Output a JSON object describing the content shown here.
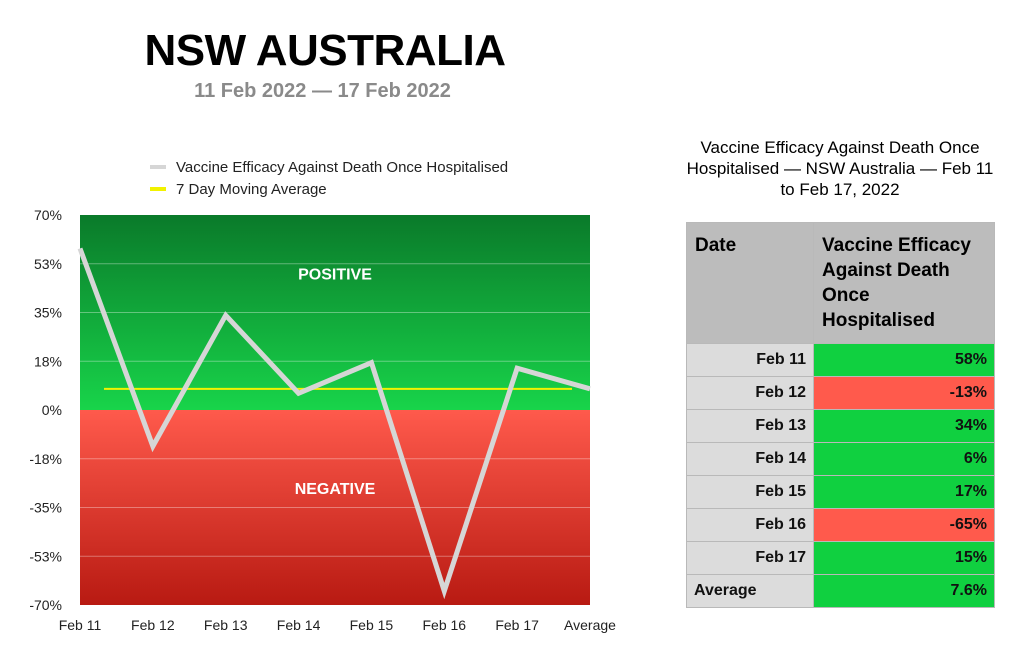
{
  "title": "NSW AUSTRALIA",
  "subtitle": "11 Feb 2022 — 17 Feb 2022",
  "legend": [
    {
      "label": "Vaccine Efficacy Against Death Once Hospitalised",
      "color": "#d6d6d6"
    },
    {
      "label": "7 Day Moving Average",
      "color": "#f2f200"
    }
  ],
  "chart_data": {
    "type": "line",
    "categories": [
      "Feb 11",
      "Feb 12",
      "Feb 13",
      "Feb 14",
      "Feb 15",
      "Feb 16",
      "Feb 17",
      "Average"
    ],
    "series": [
      {
        "name": "Vaccine Efficacy Against Death Once Hospitalised",
        "values": [
          58,
          -13,
          34,
          6,
          17,
          -65,
          15,
          7.6
        ],
        "color": "#d6d6d6"
      },
      {
        "name": "7 Day Moving Average",
        "x_range": [
          "Feb 11",
          "Average"
        ],
        "value": 7.6,
        "color": "#f2f200"
      }
    ],
    "y_ticks": [
      "70%",
      "53%",
      "35%",
      "18%",
      "0%",
      "-18%",
      "-35%",
      "-53%",
      "-70%"
    ],
    "ylim": [
      -70,
      70
    ],
    "zones": [
      {
        "label": "POSITIVE",
        "range": [
          0,
          70
        ],
        "color_top": "#0a7a2a",
        "color_bottom": "#18d44a"
      },
      {
        "label": "NEGATIVE",
        "range": [
          -70,
          0
        ],
        "color_top": "#ff5a4c",
        "color_bottom": "#b81a12"
      }
    ],
    "grid": true
  },
  "table": {
    "title": "Vaccine Efficacy Against Death Once Hospitalised — NSW Australia — Feb 11 to Feb 17, 2022",
    "headers": [
      "Date",
      "Vaccine Efficacy Against Death Once Hospitalised"
    ],
    "rows": [
      {
        "date": "Feb 11",
        "value": "58%",
        "status": "positive"
      },
      {
        "date": "Feb 12",
        "value": "-13%",
        "status": "negative"
      },
      {
        "date": "Feb 13",
        "value": "34%",
        "status": "positive"
      },
      {
        "date": "Feb 14",
        "value": "6%",
        "status": "positive"
      },
      {
        "date": "Feb 15",
        "value": "17%",
        "status": "positive"
      },
      {
        "date": "Feb 16",
        "value": "-65%",
        "status": "negative"
      },
      {
        "date": "Feb 17",
        "value": "15%",
        "status": "positive"
      }
    ],
    "average": {
      "label": "Average",
      "value": "7.6%"
    }
  }
}
